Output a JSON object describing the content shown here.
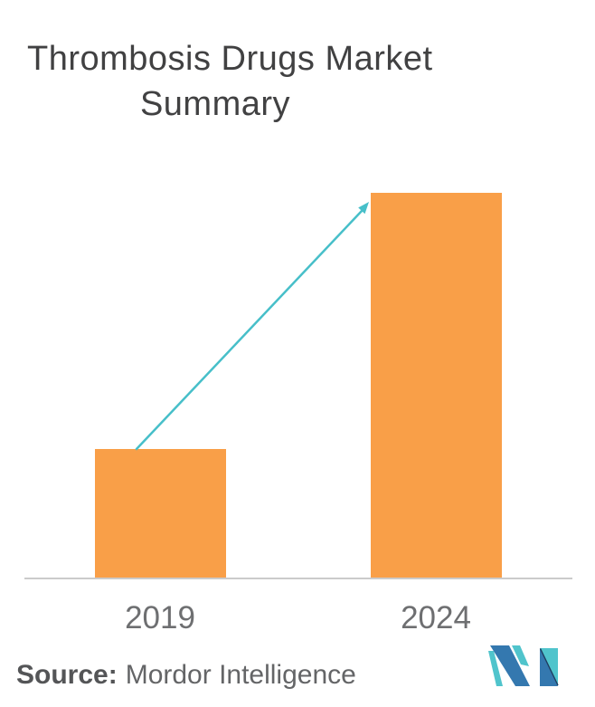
{
  "title": {
    "lines": [
      "Thrombosis Drugs Market",
      "Summary"
    ]
  },
  "chart_data": {
    "type": "bar",
    "title": "Thrombosis Drugs Market Summary",
    "categories": [
      "2019",
      "2024"
    ],
    "values": [
      1,
      3
    ],
    "values_note": "relative heights only; no y-axis scale shown (2024 bar is about 3x the 2019 bar)",
    "xlabel": "",
    "ylabel": "",
    "ylim": [
      0,
      3.2
    ],
    "grid": false,
    "legend": "none",
    "annotation": "teal growth arrow pointing from top of 2019 bar to top of 2024 bar",
    "bar_color_hex": "#F99F48",
    "arrow_color_hex": "#47BFC9",
    "axis_line_color_hex": "#CBCBCB",
    "tick_label_color_hex": "#6E6F71",
    "title_color_hex": "#414142"
  },
  "source": {
    "label": "Source:",
    "value": "Mordor Intelligence"
  },
  "logo": {
    "name": "mordor-intelligence-logo",
    "teal_hex": "#50C4CC",
    "blue_hex": "#3478AF",
    "navy_hex": "#1E3C5F"
  }
}
